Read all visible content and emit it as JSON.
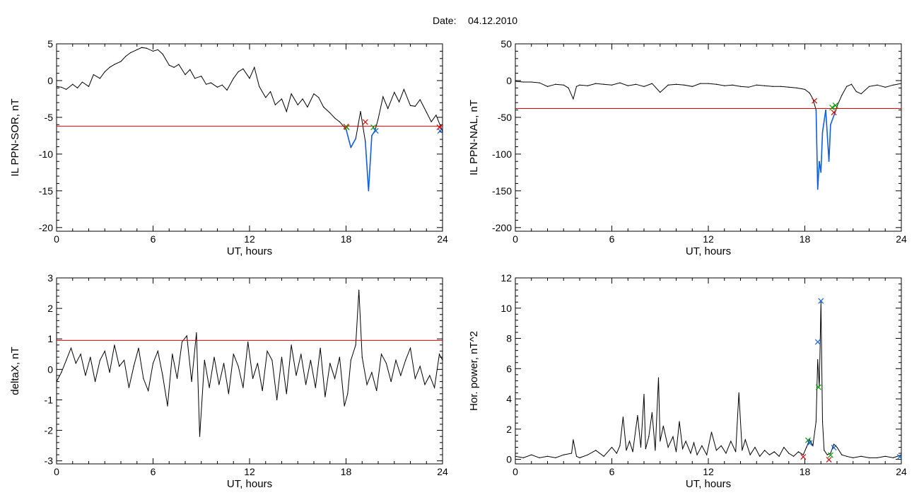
{
  "header": {
    "date_label": "Date:",
    "date_value": "04.12.2010"
  },
  "colors": {
    "trace": "#000000",
    "threshold": "#e00000",
    "highlight": "#1060e0",
    "marker_red": "#e00000",
    "marker_green": "#00a000",
    "marker_blue": "#1060e0"
  },
  "chart_data": [
    {
      "id": "sor",
      "type": "line",
      "xlabel": "UT, hours",
      "ylabel": "IL PPN-SOR, nT",
      "xlim": [
        0,
        24
      ],
      "ylim": [
        -20.5,
        5
      ],
      "xticks": [
        0,
        6,
        12,
        18,
        24
      ],
      "yticks": [
        5,
        0,
        -5,
        -10,
        -15,
        -20
      ],
      "threshold": -6.2,
      "series": [
        {
          "x": [
            0,
            0.3,
            0.6,
            1,
            1.3,
            1.6,
            2,
            2.3,
            2.7,
            3,
            3.3,
            3.6,
            4,
            4.3,
            4.6,
            5,
            5.3,
            5.6,
            6,
            6.3,
            6.6,
            7,
            7.3,
            7.6,
            8,
            8.3,
            8.6,
            9,
            9.3,
            9.6,
            10,
            10.3,
            10.6,
            11,
            11.3,
            11.6,
            12,
            12.3,
            12.6,
            13,
            13.3,
            13.6,
            14,
            14.3,
            14.6,
            15,
            15.3,
            15.6,
            16,
            16.3,
            16.6,
            17,
            17.3,
            17.6,
            18,
            18.3,
            18.6,
            18.9,
            19.2,
            19.4,
            19.6,
            19.8,
            20,
            20.3,
            20.6,
            21,
            21.3,
            21.6,
            22,
            22.3,
            22.6,
            23,
            23.3,
            23.6,
            24
          ],
          "y": [
            -0.8,
            -0.9,
            -1.2,
            -0.5,
            -1,
            -0.2,
            -0.8,
            0.8,
            0.3,
            1.2,
            1.8,
            2.2,
            2.6,
            3.3,
            3.8,
            4.2,
            4.5,
            4.4,
            4,
            4.2,
            3.6,
            2.1,
            1.8,
            2.2,
            0.8,
            1.5,
            0.3,
            0.6,
            -0.5,
            -0.3,
            -0.9,
            -0.6,
            -1.3,
            0.3,
            1.2,
            1.6,
            0.3,
            1.8,
            -0.8,
            -2.3,
            -1.5,
            -3.3,
            -2.5,
            -4.2,
            -1.8,
            -3.3,
            -2.5,
            -3.6,
            -1.8,
            -2.3,
            -3.6,
            -4.4,
            -5.1,
            -5.6,
            -6.6,
            -9.1,
            -7.9,
            -4.2,
            -8.3,
            -15,
            -7.5,
            -6.8,
            -5.2,
            -2.2,
            -3.8,
            -1.6,
            -2.9,
            -1.2,
            -3.4,
            -3.5,
            -2.6,
            -4.3,
            -5.6,
            -4.7,
            -6.9
          ]
        }
      ],
      "markers": [
        {
          "x": 18.0,
          "y": -6.2,
          "symbol": "×",
          "color": "marker_red"
        },
        {
          "x": 18.05,
          "y": -6.3,
          "symbol": "×",
          "color": "marker_green"
        },
        {
          "x": 19.2,
          "y": -5.6,
          "symbol": "×",
          "color": "marker_red"
        },
        {
          "x": 19.7,
          "y": -6.3,
          "symbol": "×",
          "color": "marker_green"
        },
        {
          "x": 19.85,
          "y": -6.8,
          "symbol": "×",
          "color": "marker_blue"
        },
        {
          "x": 23.8,
          "y": -6.3,
          "symbol": "×",
          "color": "marker_red"
        },
        {
          "x": 23.85,
          "y": -6.8,
          "symbol": "×",
          "color": "marker_blue"
        }
      ]
    },
    {
      "id": "nal",
      "type": "line",
      "xlabel": "UT, hours",
      "ylabel": "IL PPN-NAL, nT",
      "xlim": [
        0,
        24
      ],
      "ylim": [
        -205,
        50
      ],
      "xticks": [
        0,
        6,
        12,
        18,
        24
      ],
      "yticks": [
        50,
        0,
        -50,
        -100,
        -150,
        -200
      ],
      "threshold": -38,
      "series": [
        {
          "x": [
            0,
            0.5,
            1,
            1.5,
            2,
            2.5,
            3,
            3.3,
            3.6,
            3.8,
            4,
            4.5,
            5,
            5.5,
            6,
            6.5,
            7,
            7.5,
            8,
            8.5,
            9,
            9.5,
            10,
            10.5,
            11,
            11.5,
            12,
            12.5,
            13,
            13.5,
            14,
            14.5,
            15,
            15.5,
            16,
            16.5,
            17,
            17.5,
            18,
            18.3,
            18.5,
            18.7,
            18.8,
            18.9,
            19,
            19.1,
            19.3,
            19.5,
            19.6,
            19.8,
            19.9,
            20,
            20.3,
            20.6,
            20.9,
            21.2,
            21.5,
            22,
            22.5,
            23,
            23.5,
            24
          ],
          "y": [
            -1,
            -2,
            -2,
            -3,
            -8,
            -5,
            -6,
            -10,
            -25,
            -8,
            -6,
            -7,
            -4,
            -5,
            -6,
            -3,
            -7,
            -5,
            -8,
            -4,
            -16,
            -6,
            -5,
            -6,
            -8,
            -4,
            -4,
            -5,
            -7,
            -6,
            -8,
            -9,
            -6,
            -7,
            -8,
            -8,
            -9,
            -10,
            -12,
            -17,
            -25,
            -40,
            -148,
            -110,
            -125,
            -70,
            -40,
            -110,
            -60,
            -48,
            -42,
            -35,
            -20,
            -8,
            -5,
            -15,
            -18,
            -8,
            -6,
            -9,
            -6,
            -4
          ]
        }
      ],
      "markers": [
        {
          "x": 18.6,
          "y": -27,
          "symbol": "×",
          "color": "marker_red"
        },
        {
          "x": 19.7,
          "y": -36,
          "symbol": "×",
          "color": "marker_green"
        },
        {
          "x": 19.9,
          "y": -33,
          "symbol": "×",
          "color": "marker_green"
        },
        {
          "x": 19.8,
          "y": -43,
          "symbol": "×",
          "color": "marker_red"
        }
      ]
    },
    {
      "id": "deltax",
      "type": "line",
      "xlabel": "UT, hours",
      "ylabel": "deltaX, nT",
      "xlim": [
        0,
        24
      ],
      "ylim": [
        -3.1,
        3
      ],
      "xticks": [
        0,
        6,
        12,
        18,
        24
      ],
      "yticks": [
        3,
        2,
        1,
        0,
        -1,
        -2,
        -3
      ],
      "threshold": 0.95,
      "series": [
        {
          "x": [
            0,
            0.3,
            0.6,
            0.9,
            1.2,
            1.5,
            1.8,
            2.1,
            2.4,
            2.7,
            3,
            3.3,
            3.6,
            3.9,
            4.2,
            4.5,
            4.8,
            5.1,
            5.4,
            5.7,
            6,
            6.3,
            6.6,
            6.9,
            7.2,
            7.5,
            7.8,
            8.1,
            8.4,
            8.7,
            8.9,
            9.2,
            9.5,
            9.8,
            10.1,
            10.4,
            10.7,
            11,
            11.3,
            11.6,
            11.9,
            12.2,
            12.5,
            12.8,
            13.1,
            13.4,
            13.7,
            14,
            14.3,
            14.6,
            14.9,
            15.2,
            15.5,
            15.8,
            16.1,
            16.4,
            16.7,
            17,
            17.3,
            17.6,
            17.9,
            18.1,
            18.3,
            18.6,
            18.8,
            19,
            19.3,
            19.6,
            19.9,
            20.2,
            20.5,
            20.8,
            21.1,
            21.4,
            21.7,
            22,
            22.3,
            22.6,
            22.9,
            23.2,
            23.5,
            23.8,
            24
          ],
          "y": [
            -0.4,
            -0.1,
            0.3,
            0.7,
            0.2,
            0.5,
            -0.2,
            0.4,
            -0.4,
            0.3,
            0.6,
            -0.1,
            0.8,
            0.1,
            0.3,
            -0.6,
            0.1,
            0.7,
            -0.3,
            -0.7,
            0.2,
            0.6,
            -0.2,
            -1.2,
            0.5,
            -0.3,
            0.9,
            1.1,
            -0.4,
            1.2,
            -2.2,
            0.3,
            -0.6,
            0.4,
            -0.5,
            0.2,
            -0.8,
            0.5,
            0.1,
            -0.6,
            0.9,
            -0.3,
            0.2,
            -0.7,
            0.6,
            0.3,
            -1,
            0.4,
            -0.8,
            0.8,
            -0.2,
            0.5,
            -0.5,
            0.3,
            -0.6,
            0.7,
            -0.9,
            0.2,
            -0.3,
            0.4,
            -1.2,
            -0.8,
            0.3,
            0.8,
            2.6,
            0.4,
            -0.5,
            -0.1,
            -0.7,
            0.5,
            0.2,
            -0.4,
            0.3,
            -0.2,
            0.3,
            0.7,
            -0.3,
            0.1,
            -0.5,
            -0.2,
            -0.6,
            0.5,
            0.3
          ]
        }
      ],
      "markers": []
    },
    {
      "id": "hpower",
      "type": "line",
      "xlabel": "UT, hours",
      "ylabel": "Hor. power, nT^2",
      "xlim": [
        0,
        24
      ],
      "ylim": [
        -0.3,
        12
      ],
      "xticks": [
        0,
        6,
        12,
        18,
        24
      ],
      "yticks": [
        12,
        10,
        8,
        6,
        4,
        2,
        0
      ],
      "threshold": null,
      "series": [
        {
          "x": [
            0,
            0.5,
            1,
            1.5,
            2,
            2.5,
            3,
            3.5,
            3.6,
            3.8,
            4,
            4.5,
            5,
            5.5,
            6,
            6.3,
            6.5,
            6.7,
            6.9,
            7.1,
            7.3,
            7.6,
            7.8,
            8,
            8.1,
            8.3,
            8.5,
            8.7,
            8.9,
            9,
            9.2,
            9.5,
            9.8,
            10,
            10.2,
            10.4,
            10.6,
            10.9,
            11.1,
            11.3,
            11.6,
            11.9,
            12.2,
            12.5,
            12.8,
            13.1,
            13.4,
            13.7,
            13.9,
            14.1,
            14.3,
            14.6,
            14.9,
            15.2,
            15.5,
            15.8,
            16.1,
            16.4,
            16.7,
            17,
            17.3,
            17.6,
            17.9,
            18.1,
            18.3,
            18.5,
            18.7,
            18.8,
            18.9,
            19,
            19.1,
            19.2,
            19.4,
            19.6,
            19.8,
            20,
            20.3,
            20.6,
            21,
            21.5,
            22,
            22.5,
            23,
            23.5,
            24
          ],
          "y": [
            0.2,
            0.1,
            0.3,
            0.1,
            0.2,
            0.1,
            0.3,
            0.4,
            1.3,
            0.2,
            0.1,
            0.3,
            0.6,
            0.2,
            0.8,
            0.4,
            0.9,
            2.8,
            0.6,
            1.2,
            0.5,
            2.9,
            0.8,
            4.3,
            0.7,
            1.5,
            3.1,
            0.6,
            5.4,
            1.2,
            2.2,
            0.8,
            1.5,
            0.5,
            2.5,
            0.7,
            1.2,
            0.4,
            1.1,
            0.3,
            0.9,
            0.3,
            1.8,
            0.6,
            0.9,
            0.4,
            1.2,
            0.5,
            4.4,
            0.6,
            1.3,
            0.3,
            0.8,
            0.2,
            0.6,
            0.3,
            0.5,
            0.2,
            0.8,
            0.4,
            0.2,
            0.5,
            0.3,
            0.8,
            1.3,
            0.9,
            2.5,
            6.6,
            4.8,
            10.4,
            2.5,
            0.6,
            0.3,
            0.4,
            1.0,
            0.8,
            0.3,
            0.2,
            0.1,
            0.2,
            0.1,
            0.1,
            0.2,
            0.1,
            0.3
          ]
        }
      ],
      "markers": [
        {
          "x": 18.2,
          "y": 1.3,
          "symbol": "×",
          "color": "marker_green"
        },
        {
          "x": 18.3,
          "y": 1.1,
          "symbol": "×",
          "color": "marker_blue"
        },
        {
          "x": 17.9,
          "y": 0.2,
          "symbol": "×",
          "color": "marker_red"
        },
        {
          "x": 18.8,
          "y": 7.8,
          "symbol": "×",
          "color": "marker_blue"
        },
        {
          "x": 18.85,
          "y": 4.8,
          "symbol": "×",
          "color": "marker_green"
        },
        {
          "x": 19.0,
          "y": 10.5,
          "symbol": "×",
          "color": "marker_blue"
        },
        {
          "x": 19.6,
          "y": 0.3,
          "symbol": "×",
          "color": "marker_green"
        },
        {
          "x": 19.5,
          "y": 0.0,
          "symbol": "×",
          "color": "marker_red"
        },
        {
          "x": 19.8,
          "y": 0.8,
          "symbol": "×",
          "color": "marker_blue"
        },
        {
          "x": 23.9,
          "y": 0.2,
          "symbol": "×",
          "color": "marker_blue"
        }
      ]
    }
  ]
}
